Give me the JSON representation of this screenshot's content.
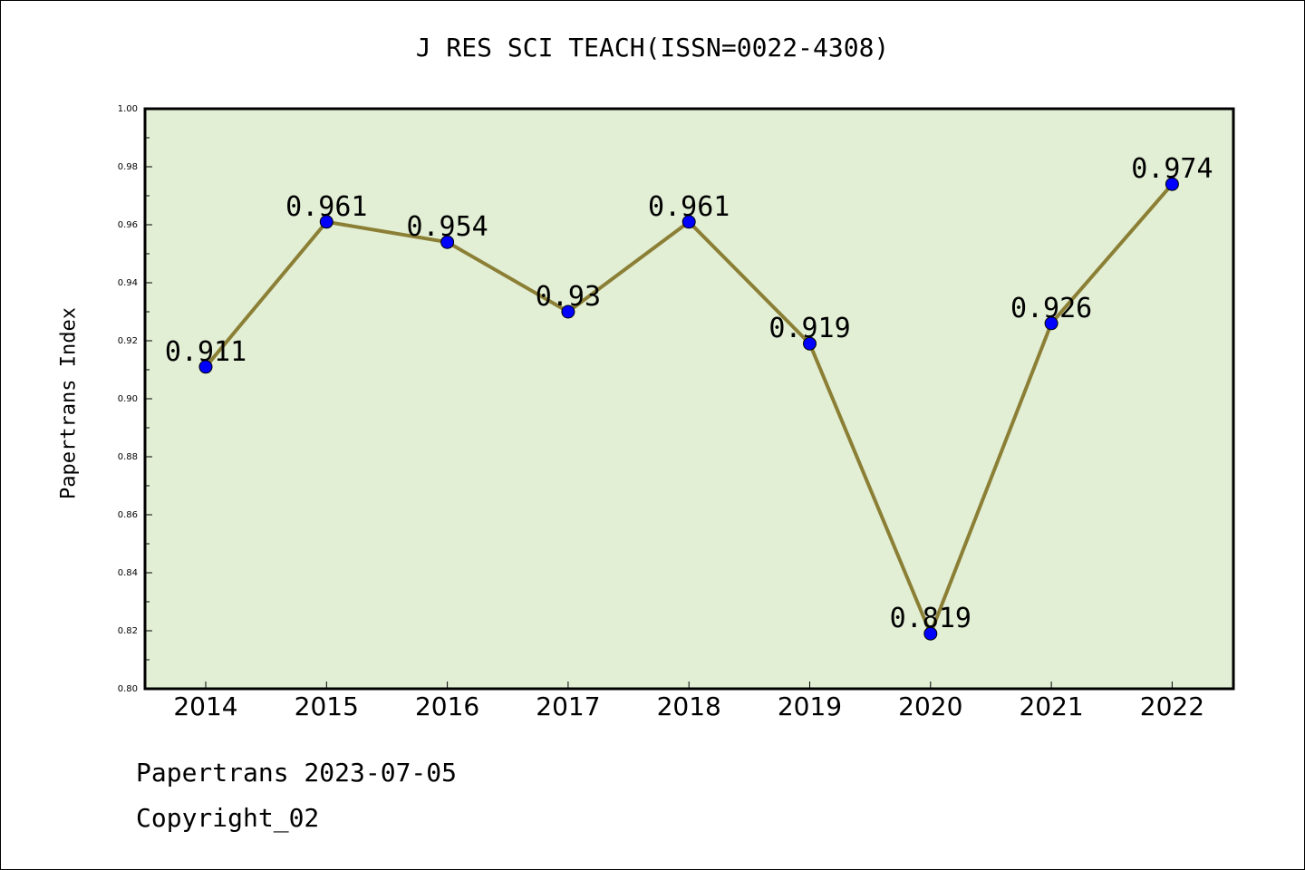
{
  "chart_data": {
    "type": "line",
    "title": "J RES SCI TEACH(ISSN=0022-4308)",
    "xlabel": "",
    "ylabel": "Papertrans Index",
    "categories": [
      "2014",
      "2015",
      "2016",
      "2017",
      "2018",
      "2019",
      "2020",
      "2021",
      "2022"
    ],
    "values": [
      0.911,
      0.961,
      0.954,
      0.93,
      0.961,
      0.919,
      0.819,
      0.926,
      0.974
    ],
    "data_labels": [
      "0.911",
      "0.961",
      "0.954",
      "0.93",
      "0.961",
      "0.919",
      "0.819",
      "0.926",
      "0.974"
    ],
    "ylim": [
      0.8,
      1.0
    ],
    "yticks": [
      "0.80",
      "0.82",
      "0.84",
      "0.86",
      "0.88",
      "0.90",
      "0.92",
      "0.94",
      "0.96",
      "0.98",
      "1.00"
    ],
    "grid": false,
    "colors": {
      "plot_background": "#e2efd5",
      "line": "#8b7f35",
      "marker": "#0000ff"
    }
  },
  "footer": {
    "date_line": "Papertrans 2023-07-05",
    "copyright_line": "Copyright_02"
  }
}
